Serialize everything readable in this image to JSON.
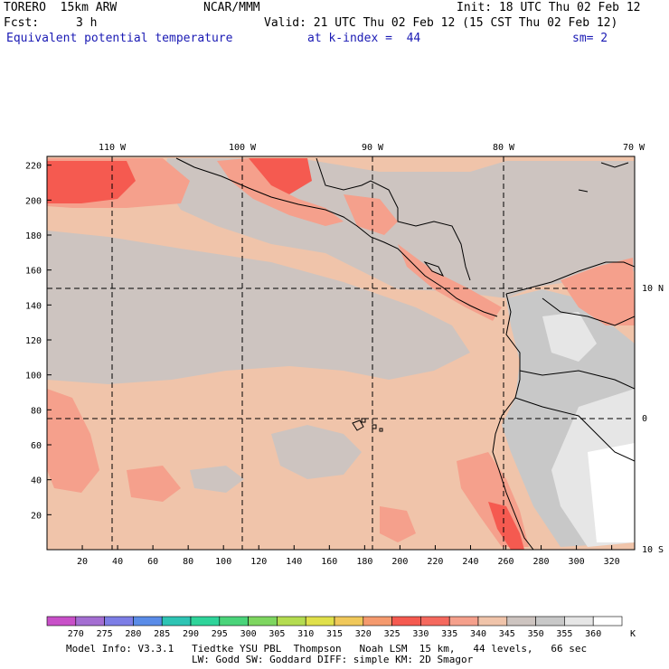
{
  "header": {
    "model": "TORERO  15km ARW",
    "center": "NCAR/MMM",
    "init": "Init: 18 UTC Thu 02 Feb 12",
    "fcst_label": "Fcst:",
    "fcst_value": "3 h",
    "valid": "Valid: 21 UTC Thu 02 Feb 12 (15 CST Thu 02 Feb 12)",
    "field": "Equivalent potential temperature",
    "level": "at k-index =  44",
    "smoothing": "sm= 2"
  },
  "map": {
    "lon_labels": [
      "110 W",
      "100 W",
      "90 W",
      "80 W",
      "70 W"
    ],
    "lat_labels": [
      "10 N",
      "0",
      "10 S"
    ],
    "x_ticks": [
      "20",
      "40",
      "60",
      "80",
      "100",
      "120",
      "140",
      "160",
      "180",
      "200",
      "220",
      "240",
      "260",
      "280",
      "300",
      "320"
    ],
    "y_ticks": [
      "220",
      "200",
      "180",
      "160",
      "140",
      "120",
      "100",
      "80",
      "60",
      "40",
      "20"
    ],
    "grid_x_range": [
      0,
      333
    ],
    "grid_y_range": [
      0,
      225
    ]
  },
  "colorbar": {
    "labels": [
      "270",
      "275",
      "280",
      "285",
      "290",
      "295",
      "300",
      "305",
      "310",
      "315",
      "320",
      "325",
      "330",
      "335",
      "340",
      "345",
      "350",
      "355",
      "360"
    ],
    "unit": "K",
    "colors": [
      "#c850c8",
      "#a46ed2",
      "#7d7ee6",
      "#5a8ce8",
      "#2ec4b4",
      "#2fd49a",
      "#4ad47a",
      "#7ed660",
      "#b4dc50",
      "#e0e04a",
      "#f0c85a",
      "#f59a6e",
      "#f55a50",
      "#f5695e",
      "#f5a08c",
      "#f0c4aa",
      "#cdc4c0",
      "#c8c8c8",
      "#e6e6e6",
      "#ffffff"
    ]
  },
  "footer": {
    "line1": "Model Info: V3.3.1   Tiedtke YSU PBL  Thompson   Noah LSM  15 km,   44 levels,   66 sec",
    "line2": "LW: Godd SW: Goddard DIFF: simple KM: 2D Smagor"
  }
}
